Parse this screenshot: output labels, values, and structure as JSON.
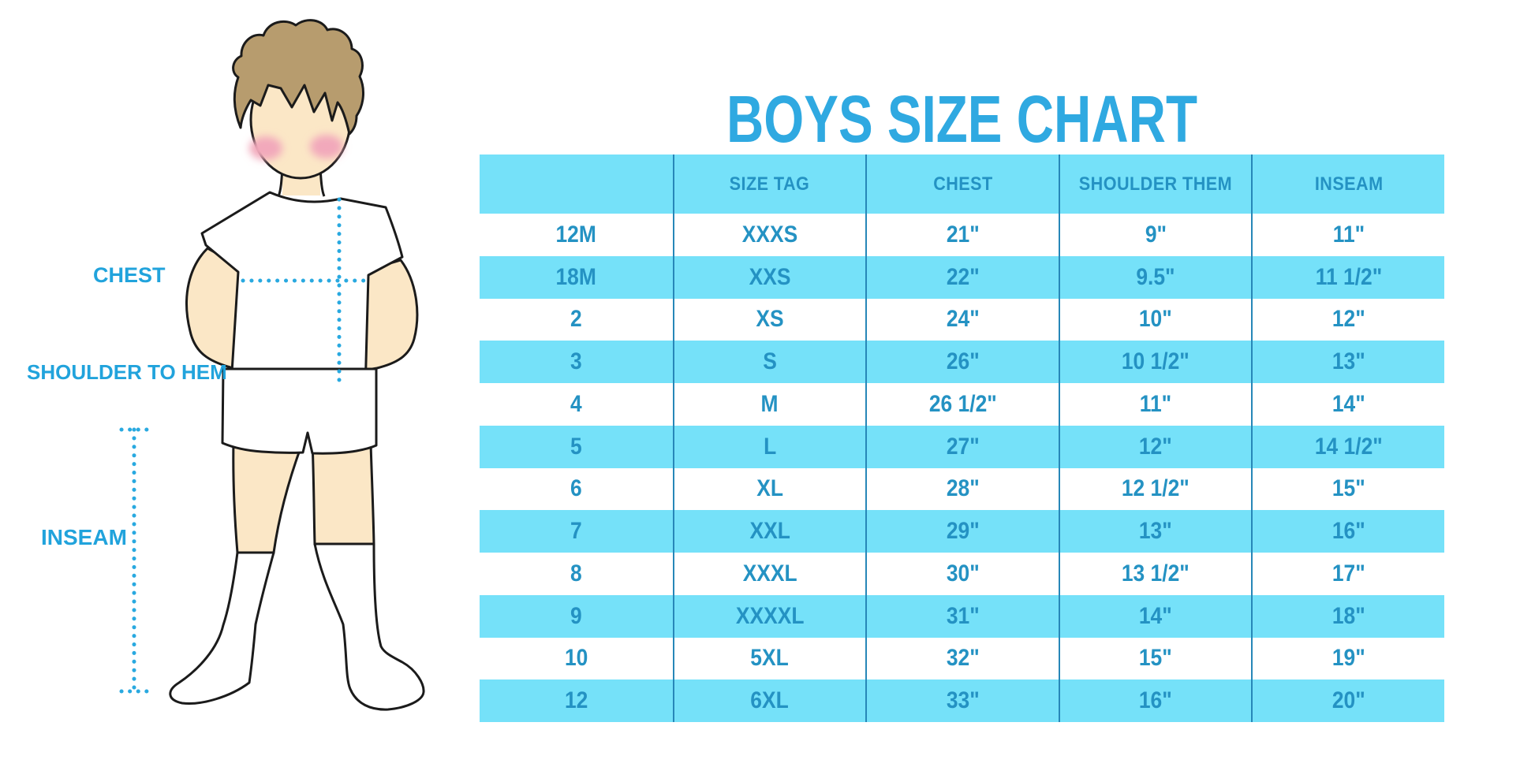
{
  "title": "BOYS SIZE CHART",
  "measurement_labels": {
    "chest": "CHEST",
    "shoulder_to_hem": "SHOULDER TO HEM",
    "inseam": "INSEAM"
  },
  "chart_data": {
    "type": "table",
    "title": "BOYS SIZE CHART",
    "columns": [
      "",
      "SIZE TAG",
      "CHEST",
      "SHOULDER THEM",
      "INSEAM"
    ],
    "rows": [
      [
        "12M",
        "XXXS",
        "21\"",
        "9\"",
        "11\""
      ],
      [
        "18M",
        "XXS",
        "22\"",
        "9.5\"",
        "11 1/2\""
      ],
      [
        "2",
        "XS",
        "24\"",
        "10\"",
        "12\""
      ],
      [
        "3",
        "S",
        "26\"",
        "10 1/2\"",
        "13\""
      ],
      [
        "4",
        "M",
        "26 1/2\"",
        "11\"",
        "14\""
      ],
      [
        "5",
        "L",
        "27\"",
        "12\"",
        "14 1/2\""
      ],
      [
        "6",
        "XL",
        "28\"",
        "12 1/2\"",
        "15\""
      ],
      [
        "7",
        "XXL",
        "29\"",
        "13\"",
        "16\""
      ],
      [
        "8",
        "XXXL",
        "30\"",
        "13 1/2\"",
        "17\""
      ],
      [
        "9",
        "XXXXL",
        "31\"",
        "14\"",
        "18\""
      ],
      [
        "10",
        "5XL",
        "32\"",
        "15\"",
        "19\""
      ],
      [
        "12",
        "6XL",
        "33\"",
        "16\"",
        "20\""
      ]
    ],
    "zebra_striping": true,
    "legend_position": "none"
  },
  "colors": {
    "accent_blue": "#29A9E0",
    "title_blue": "#2FA9E1",
    "table_text_blue": "#2492C3",
    "stripe_background": "#75E1F9",
    "grid_line": "#2787B8",
    "skin": "#FBE7C6",
    "hair": "#B79C6E",
    "cheek": "#F2A9BB",
    "outline": "#1B1B1B"
  }
}
